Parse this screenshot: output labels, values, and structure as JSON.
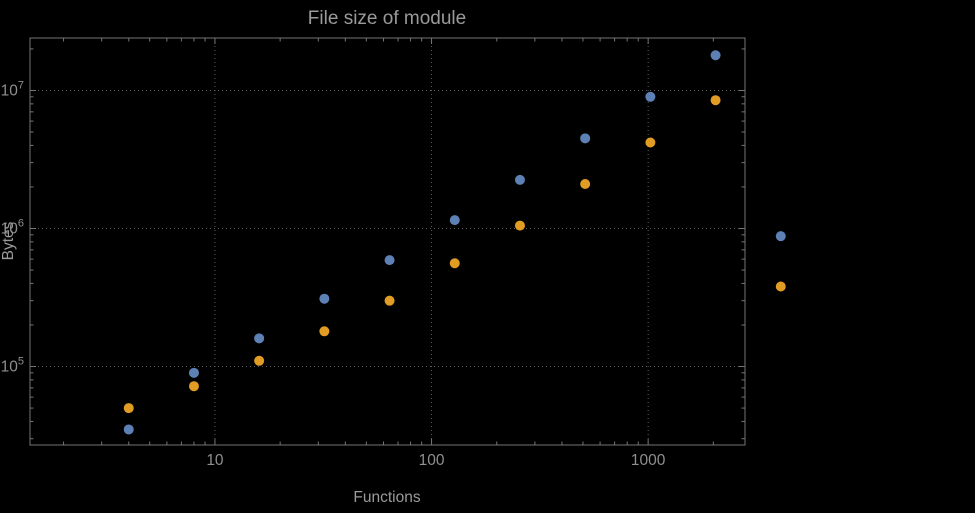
{
  "chart_data": {
    "type": "scatter",
    "title": "File size of module",
    "xlabel": "Functions",
    "ylabel": "Bytes",
    "xscale": "log",
    "yscale": "log",
    "xlim": [
      1.4,
      2800
    ],
    "ylim": [
      27000,
      24000000
    ],
    "grid": "dotted",
    "legend": "none",
    "clip_points": false,
    "x": [
      4,
      8,
      16,
      32,
      64,
      128,
      256,
      512,
      1024,
      2048,
      4096
    ],
    "series": [
      {
        "name": "series-blue",
        "color": "#5E81B5",
        "values": [
          35000,
          90000,
          160000,
          310000,
          590000,
          1150000,
          2250000,
          4500000,
          9000000,
          18000000,
          880000
        ]
      },
      {
        "name": "series-orange",
        "color": "#E19C24",
        "values": [
          50000,
          72000,
          110000,
          180000,
          300000,
          560000,
          1050000,
          2100000,
          4200000,
          8500000,
          380000
        ]
      }
    ],
    "x_ticks": [
      10,
      100,
      1000
    ],
    "x_tick_labels": [
      "10",
      "100",
      "1000"
    ],
    "y_ticks": [
      100000,
      1000000,
      10000000
    ],
    "y_tick_labels": [
      "10^5",
      "10^6",
      "10^7"
    ],
    "colors": {
      "background": "#000000",
      "frame": "#757575",
      "grid": "#5d5d5d",
      "title_text": "#9a9a9a",
      "axis_text": "#9a9a9a",
      "tick_text": "#8f8f8f"
    }
  }
}
